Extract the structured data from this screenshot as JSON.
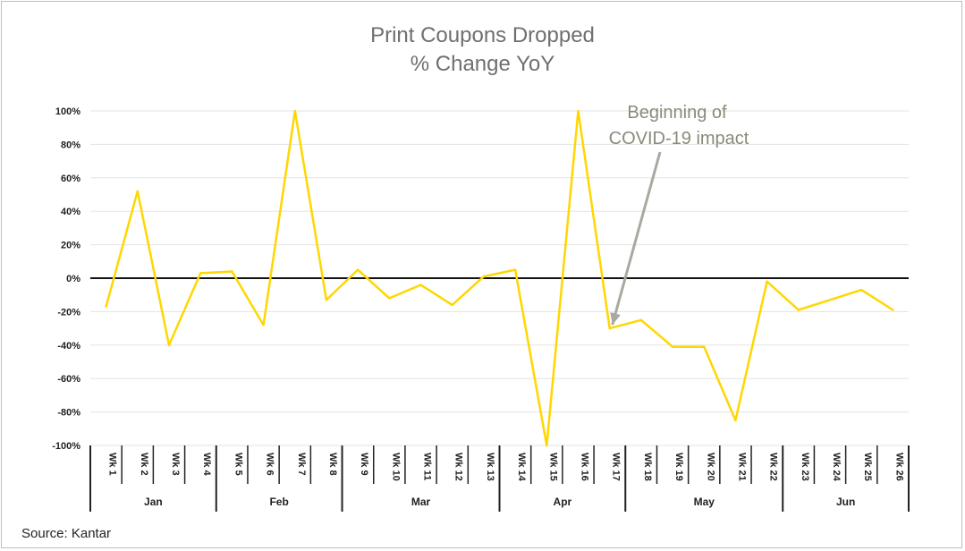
{
  "chart_data": {
    "type": "line",
    "title_lines": [
      "Print Coupons Dropped",
      "% Change YoY"
    ],
    "x": [
      "Wk 1",
      "Wk 2",
      "Wk 3",
      "Wk 4",
      "Wk 5",
      "Wk 6",
      "Wk 7",
      "Wk 8",
      "Wk 9",
      "Wk 10",
      "Wk 11",
      "Wk 12",
      "Wk 13",
      "Wk 14",
      "Wk 15",
      "Wk 16",
      "Wk 17",
      "Wk 18",
      "Wk 19",
      "Wk 20",
      "Wk 21",
      "Wk 22",
      "Wk 23",
      "Wk 24",
      "Wk 25",
      "Wk 26"
    ],
    "values": [
      -17,
      52,
      -40,
      3,
      4,
      -28,
      100,
      -13,
      5,
      -12,
      -4,
      -16,
      1,
      5,
      -100,
      100,
      -30,
      -25,
      -41,
      -41,
      -85,
      -2,
      -19,
      -13,
      -7,
      -19
    ],
    "months": [
      {
        "label": "Jan",
        "start": 0,
        "end": 3
      },
      {
        "label": "Feb",
        "start": 4,
        "end": 7
      },
      {
        "label": "Mar",
        "start": 8,
        "end": 12
      },
      {
        "label": "Apr",
        "start": 13,
        "end": 16
      },
      {
        "label": "May",
        "start": 17,
        "end": 21
      },
      {
        "label": "Jun",
        "start": 22,
        "end": 25
      }
    ],
    "ylim": [
      -100,
      100
    ],
    "yticks": [
      -100,
      -80,
      -60,
      -40,
      -20,
      0,
      20,
      40,
      60,
      80,
      100
    ],
    "ytick_labels": [
      "-100%",
      "-80%",
      "-60%",
      "-40%",
      "-20%",
      "0%",
      "20%",
      "40%",
      "60%",
      "80%",
      "100%"
    ],
    "grid": true,
    "line_color": "#ffd700",
    "annotation": {
      "lines": [
        "Beginning of",
        "COVID-19 impact"
      ],
      "target_index": 16,
      "color": "#a9a9a0"
    }
  },
  "source": "Source: Kantar"
}
